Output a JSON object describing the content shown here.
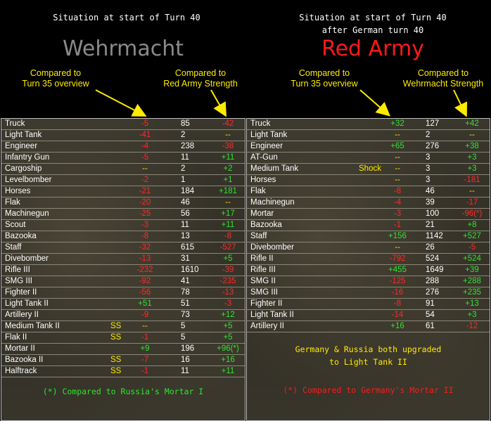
{
  "left": {
    "situation": "Situation at start of Turn 40",
    "title": "Wehrmacht",
    "title_color": "#8a8a8a",
    "annotation_1": "Compared to\nTurn 35 overview",
    "annotation_2": "Compared to\nRed Army Strength",
    "rows": [
      {
        "name": "Truck",
        "tag": "",
        "d1": "-5",
        "d1_color": "neg",
        "value": "85",
        "d2": "-42",
        "d2_color": "neg"
      },
      {
        "name": "Light Tank",
        "tag": "",
        "d1": "-41",
        "d1_color": "neg",
        "value": "2",
        "d2": "--",
        "d2_color": "neu"
      },
      {
        "name": "Engineer",
        "tag": "",
        "d1": "-4",
        "d1_color": "neg",
        "value": "238",
        "d2": "-38",
        "d2_color": "neg"
      },
      {
        "name": "Infantry Gun",
        "tag": "",
        "d1": "-5",
        "d1_color": "neg",
        "value": "11",
        "d2": "+11",
        "d2_color": "pos"
      },
      {
        "name": "Cargoship",
        "tag": "",
        "d1": "--",
        "d1_color": "neu",
        "value": "2",
        "d2": "+2",
        "d2_color": "pos"
      },
      {
        "name": "Levelbomber",
        "tag": "",
        "d1": "-2",
        "d1_color": "neg",
        "value": "1",
        "d2": "+1",
        "d2_color": "pos"
      },
      {
        "name": "Horses",
        "tag": "",
        "d1": "-21",
        "d1_color": "neg",
        "value": "184",
        "d2": "+181",
        "d2_color": "pos"
      },
      {
        "name": "Flak",
        "tag": "",
        "d1": "-20",
        "d1_color": "neg",
        "value": "46",
        "d2": "--",
        "d2_color": "neu"
      },
      {
        "name": "Machinegun",
        "tag": "",
        "d1": "-25",
        "d1_color": "neg",
        "value": "56",
        "d2": "+17",
        "d2_color": "pos"
      },
      {
        "name": "Scout",
        "tag": "",
        "d1": "-3",
        "d1_color": "neg",
        "value": "11",
        "d2": "+11",
        "d2_color": "pos"
      },
      {
        "name": "Bazooka",
        "tag": "",
        "d1": "-8",
        "d1_color": "neg",
        "value": "13",
        "d2": "-8",
        "d2_color": "neg"
      },
      {
        "name": "Staff",
        "tag": "",
        "d1": "-32",
        "d1_color": "neg",
        "value": "615",
        "d2": "-527",
        "d2_color": "neg"
      },
      {
        "name": "Divebomber",
        "tag": "",
        "d1": "-13",
        "d1_color": "neg",
        "value": "31",
        "d2": "+5",
        "d2_color": "pos"
      },
      {
        "name": "Rifle III",
        "tag": "",
        "d1": "-232",
        "d1_color": "neg",
        "value": "1610",
        "d2": "-39",
        "d2_color": "neg"
      },
      {
        "name": "SMG III",
        "tag": "",
        "d1": "-92",
        "d1_color": "neg",
        "value": "41",
        "d2": "-235",
        "d2_color": "neg"
      },
      {
        "name": "Fighter II",
        "tag": "",
        "d1": "-56",
        "d1_color": "neg",
        "value": "78",
        "d2": "-13",
        "d2_color": "neg"
      },
      {
        "name": "Light Tank II",
        "tag": "",
        "d1": "+51",
        "d1_color": "pos",
        "value": "51",
        "d2": "-3",
        "d2_color": "neg"
      },
      {
        "name": "Artillery II",
        "tag": "",
        "d1": "-9",
        "d1_color": "neg",
        "value": "73",
        "d2": "+12",
        "d2_color": "pos"
      },
      {
        "name": "Medium Tank II",
        "tag": "SS",
        "d1": "--",
        "d1_color": "neu",
        "value": "5",
        "d2": "+5",
        "d2_color": "pos"
      },
      {
        "name": "Flak II",
        "tag": "SS",
        "d1": "-1",
        "d1_color": "neg",
        "value": "5",
        "d2": "+5",
        "d2_color": "pos"
      },
      {
        "name": "Mortar II",
        "tag": "",
        "d1": "+9",
        "d1_color": "pos",
        "value": "196",
        "d2": "+96(*)",
        "d2_color": "pos"
      },
      {
        "name": "Bazooka II",
        "tag": "SS",
        "d1": "-7",
        "d1_color": "neg",
        "value": "16",
        "d2": "+16",
        "d2_color": "pos"
      },
      {
        "name": "Halftrack",
        "tag": "SS",
        "d1": "-1",
        "d1_color": "neg",
        "value": "11",
        "d2": "+11",
        "d2_color": "pos"
      }
    ],
    "footnote": "(*) Compared to Russia's Mortar I",
    "footnote_color": "#31e331"
  },
  "right": {
    "situation": "Situation at start of Turn 40\nafter German turn 40",
    "title": "Red Army",
    "title_color": "#ff1a1a",
    "annotation_1": "Compared to\nTurn 35 overview",
    "annotation_2": "Compared to\nWehrmacht Strength",
    "rows": [
      {
        "name": "Truck",
        "tag": "",
        "d1": "+32",
        "d1_color": "pos",
        "value": "127",
        "d2": "+42",
        "d2_color": "pos"
      },
      {
        "name": "Light Tank",
        "tag": "",
        "d1": "--",
        "d1_color": "neu",
        "value": "2",
        "d2": "--",
        "d2_color": "neu"
      },
      {
        "name": "Engineer",
        "tag": "",
        "d1": "+65",
        "d1_color": "pos",
        "value": "276",
        "d2": "+38",
        "d2_color": "pos"
      },
      {
        "name": "AT-Gun",
        "tag": "",
        "d1": "--",
        "d1_color": "neu",
        "value": "3",
        "d2": "+3",
        "d2_color": "pos"
      },
      {
        "name": "Medium Tank",
        "tag": "Shock",
        "d1": "--",
        "d1_color": "neu",
        "value": "3",
        "d2": "+3",
        "d2_color": "pos"
      },
      {
        "name": "Horses",
        "tag": "",
        "d1": "--",
        "d1_color": "neu",
        "value": "3",
        "d2": "-181",
        "d2_color": "neg"
      },
      {
        "name": "Flak",
        "tag": "",
        "d1": "-8",
        "d1_color": "neg",
        "value": "46",
        "d2": "--",
        "d2_color": "neu"
      },
      {
        "name": "Machinegun",
        "tag": "",
        "d1": "-4",
        "d1_color": "neg",
        "value": "39",
        "d2": "-17",
        "d2_color": "neg"
      },
      {
        "name": "Mortar",
        "tag": "",
        "d1": "-3",
        "d1_color": "neg",
        "value": "100",
        "d2": "-96(*)",
        "d2_color": "neg"
      },
      {
        "name": "Bazooka",
        "tag": "",
        "d1": "-1",
        "d1_color": "neg",
        "value": "21",
        "d2": "+8",
        "d2_color": "pos"
      },
      {
        "name": "Staff",
        "tag": "",
        "d1": "+156",
        "d1_color": "pos",
        "value": "1142",
        "d2": "+527",
        "d2_color": "pos"
      },
      {
        "name": "Divebomber",
        "tag": "",
        "d1": "--",
        "d1_color": "neu",
        "value": "26",
        "d2": "-5",
        "d2_color": "neg"
      },
      {
        "name": "Rifle II",
        "tag": "",
        "d1": "-792",
        "d1_color": "neg",
        "value": "524",
        "d2": "+524",
        "d2_color": "pos"
      },
      {
        "name": "Rifle III",
        "tag": "",
        "d1": "+455",
        "d1_color": "pos",
        "value": "1649",
        "d2": "+39",
        "d2_color": "pos"
      },
      {
        "name": "SMG II",
        "tag": "",
        "d1": "-125",
        "d1_color": "neg",
        "value": "288",
        "d2": "+288",
        "d2_color": "pos"
      },
      {
        "name": "SMG III",
        "tag": "",
        "d1": "-16",
        "d1_color": "neg",
        "value": "276",
        "d2": "+235",
        "d2_color": "pos"
      },
      {
        "name": "Fighter II",
        "tag": "",
        "d1": "-8",
        "d1_color": "neg",
        "value": "91",
        "d2": "+13",
        "d2_color": "pos"
      },
      {
        "name": "Light Tank II",
        "tag": "",
        "d1": "-14",
        "d1_color": "neg",
        "value": "54",
        "d2": "+3",
        "d2_color": "pos"
      },
      {
        "name": "Artillery II",
        "tag": "",
        "d1": "+16",
        "d1_color": "pos",
        "value": "61",
        "d2": "-12",
        "d2_color": "neg"
      }
    ],
    "note": "Germany & Russia both upgraded\nto Light Tank II",
    "note_color": "#ffeb00",
    "footnote": "(*) Compared to Germany's Mortar II",
    "footnote_color": "#ff1a1a"
  }
}
